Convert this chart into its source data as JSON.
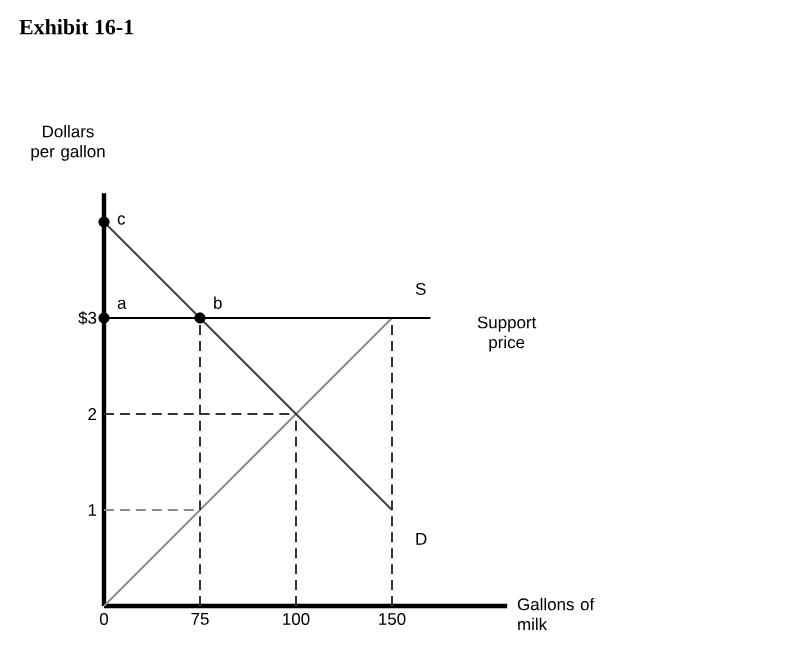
{
  "chart_data": {
    "type": "line",
    "title": "Exhibit 16-1",
    "xlabel": "Gallons of milk",
    "ylabel": "Dollars per gallon",
    "categories": [
      "0",
      "75",
      "100",
      "150"
    ],
    "ylim": [
      0,
      4.3
    ],
    "yticks": [
      1,
      2,
      {
        "value": 3,
        "label": "$3"
      }
    ],
    "series": [
      {
        "name": "S",
        "color": "#8c8c8c",
        "values": [
          0,
          1,
          2,
          3
        ]
      },
      {
        "name": "D",
        "color": "#404040",
        "values": [
          4,
          3,
          2,
          1
        ]
      },
      {
        "color": "#333333",
        "line_style": "dashed",
        "x": [
          "75",
          "75"
        ],
        "values": [
          0,
          3
        ]
      },
      {
        "color": "#333333",
        "line_style": "dashed",
        "x": [
          "100",
          "100"
        ],
        "values": [
          0,
          2
        ]
      },
      {
        "color": "#333333",
        "line_style": "dashed",
        "x": [
          "150",
          "150"
        ],
        "values": [
          0,
          3
        ]
      },
      {
        "color": "#333333",
        "line_style": "dashed",
        "x": [
          "0",
          "100"
        ],
        "values": [
          2,
          2
        ]
      },
      {
        "color": "#8c8c8c",
        "line_style": "dashed",
        "x": [
          "0",
          "75"
        ],
        "values": [
          1,
          1
        ]
      },
      {
        "type": "scatter",
        "color": "#000000",
        "marker": "circle",
        "x": [
          "0",
          "0",
          "75"
        ],
        "values": [
          3,
          4,
          3
        ]
      }
    ],
    "ref_lines": [
      {
        "axis": "y",
        "value": 3,
        "label": "Support price",
        "color": "#000000"
      }
    ],
    "annotations": [
      {
        "text": "a",
        "x": "0",
        "y": 3
      },
      {
        "text": "b",
        "x": "75",
        "y": 3
      },
      {
        "text": "c",
        "x": "0",
        "y": 4
      }
    ],
    "grid": false
  }
}
